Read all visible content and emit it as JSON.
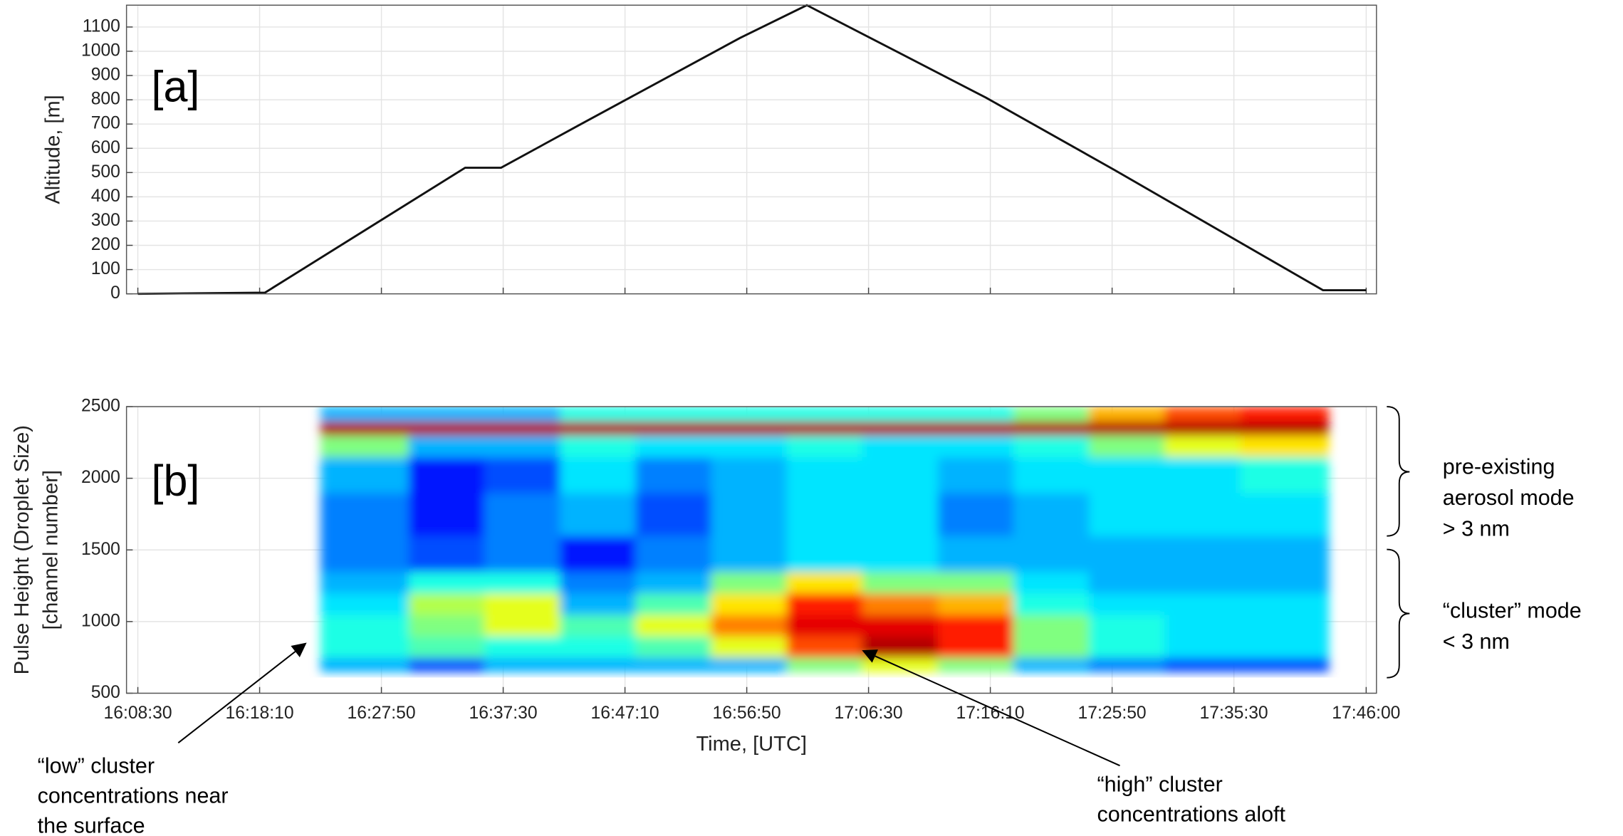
{
  "chart_data": [
    {
      "type": "line",
      "annotation": "[a]",
      "y_label": "Altitude, [m]",
      "x": [
        "16:08:30",
        "16:18:36",
        "16:34:29",
        "16:37:20",
        "16:43:41",
        "16:56:18",
        "17:01:36",
        "17:15:51",
        "17:26:02",
        "17:42:34",
        "17:46:00"
      ],
      "values": [
        0,
        5,
        520,
        520,
        700,
        1055,
        1190,
        808,
        510,
        15,
        15
      ],
      "color": "#111111",
      "xlim": [
        "16:07:36",
        "17:46:49"
      ],
      "ylim": [
        0,
        1190
      ],
      "xticks": [
        "16:08:30",
        "16:18:10",
        "16:27:50",
        "16:37:30",
        "16:47:10",
        "16:56:50",
        "17:06:30",
        "17:16:10",
        "17:25:50",
        "17:35:30",
        "17:46:00"
      ],
      "yticks": [
        0,
        100,
        200,
        300,
        400,
        500,
        600,
        700,
        800,
        900,
        1000,
        1100
      ],
      "grid": true
    },
    {
      "type": "heatmap",
      "annotation": "[b]",
      "y_label": [
        "Pulse Height (Droplet Size)",
        "[channel number]"
      ],
      "x_label": "Time, [UTC]",
      "x_edges": [
        "16:23:00",
        "16:30:00",
        "16:36:00",
        "16:42:00",
        "16:48:00",
        "16:54:00",
        "17:00:00",
        "17:06:00",
        "17:12:00",
        "17:18:00",
        "17:24:00",
        "17:30:00",
        "17:36:00",
        "17:43:00"
      ],
      "y_edges": [
        650,
        750,
        900,
        1050,
        1200,
        1350,
        1600,
        1900,
        2150,
        2300,
        2400,
        2500
      ],
      "z": [
        [
          3,
          4,
          4,
          3.5,
          3,
          2.5,
          2.5,
          3,
          5,
          9.5,
          3
        ],
        [
          2,
          4.5,
          5,
          5.5,
          4,
          2,
          1.5,
          1.5,
          3,
          9.5,
          3
        ],
        [
          3,
          4,
          6,
          6,
          4,
          2.5,
          2.5,
          2,
          3,
          9.5,
          3
        ],
        [
          3,
          4,
          4.5,
          3,
          2.5,
          1.5,
          3,
          3.5,
          4,
          9.5,
          4
        ],
        [
          3,
          4.5,
          6,
          4.5,
          3,
          2.5,
          2,
          2.5,
          3.5,
          9.5,
          4
        ],
        [
          3,
          6,
          7.5,
          6.5,
          5,
          3,
          3,
          3,
          3.5,
          9.5,
          4
        ],
        [
          5,
          8,
          9,
          8.5,
          6.5,
          3.5,
          3.5,
          3.5,
          4,
          9.5,
          4
        ],
        [
          6,
          9.5,
          9,
          7.5,
          5,
          3.5,
          3.5,
          3.5,
          3.5,
          9.5,
          4
        ],
        [
          5,
          8.5,
          8.5,
          7,
          5,
          3,
          2.5,
          3,
          3.5,
          9.5,
          4
        ],
        [
          3,
          5,
          5,
          4,
          3.5,
          3,
          3,
          3.5,
          4,
          9.5,
          5
        ],
        [
          2.5,
          4,
          4,
          3.5,
          3,
          3,
          3.5,
          3.5,
          5,
          9.5,
          7
        ],
        [
          2,
          3.5,
          3.5,
          3.5,
          3,
          3,
          3.5,
          3.5,
          6,
          9.5,
          8
        ],
        [
          2,
          3.5,
          3.5,
          3.5,
          3,
          3,
          3.5,
          4,
          6.5,
          9.5,
          8.5
        ]
      ],
      "zlim": [
        0,
        10
      ],
      "colormap": "jet",
      "xlim": [
        "16:07:36",
        "17:46:49"
      ],
      "ylim": [
        500,
        2500
      ],
      "xticks": [
        "16:08:30",
        "16:18:10",
        "16:27:50",
        "16:37:30",
        "16:47:10",
        "16:56:50",
        "17:06:30",
        "17:16:10",
        "17:25:50",
        "17:35:30",
        "17:46:00"
      ],
      "yticks": [
        500,
        1000,
        1500,
        2000,
        2500
      ],
      "grid": true,
      "brace_labels": [
        [
          "pre-existing",
          "aerosol mode",
          "> 3 nm"
        ],
        [
          "“cluster” mode",
          "< 3 nm"
        ]
      ],
      "callouts": [
        [
          "“low” cluster",
          "concentrations near",
          "the surface"
        ],
        [
          "“high” cluster",
          "concentrations aloft"
        ]
      ]
    }
  ]
}
